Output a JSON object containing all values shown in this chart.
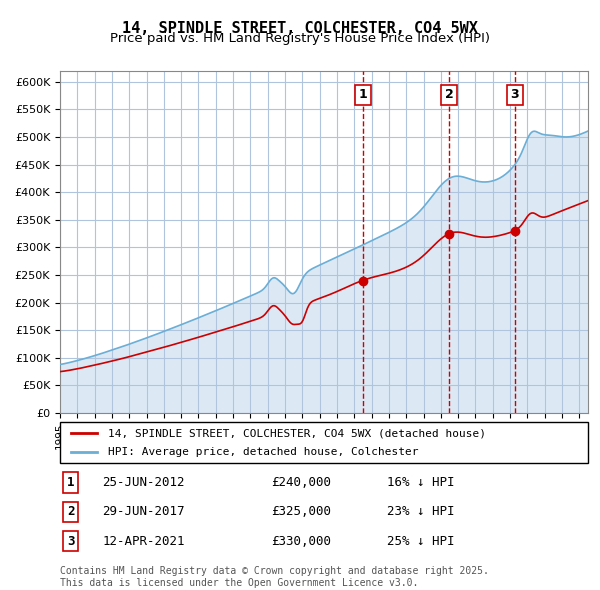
{
  "title": "14, SPINDLE STREET, COLCHESTER, CO4 5WX",
  "subtitle": "Price paid vs. HM Land Registry's House Price Index (HPI)",
  "xlabel": "",
  "ylabel": "",
  "ylim": [
    0,
    620000
  ],
  "yticks": [
    0,
    50000,
    100000,
    150000,
    200000,
    250000,
    300000,
    350000,
    400000,
    450000,
    500000,
    550000,
    600000
  ],
  "ytick_labels": [
    "£0",
    "£50K",
    "£100K",
    "£150K",
    "£200K",
    "£250K",
    "£300K",
    "£350K",
    "£400K",
    "£450K",
    "£500K",
    "£550K",
    "£600K"
  ],
  "hpi_color": "#6baed6",
  "price_color": "#cc0000",
  "bg_color": "#dce9f5",
  "plot_bg": "#ffffff",
  "grid_color": "#b0c4de",
  "vline_color": "#cc0000",
  "sale_points": [
    {
      "date_num": 2012.49,
      "price": 240000,
      "label": "1"
    },
    {
      "date_num": 2017.49,
      "price": 325000,
      "label": "2"
    },
    {
      "date_num": 2021.28,
      "price": 330000,
      "label": "3"
    }
  ],
  "sale_dates_str": [
    "25-JUN-2012",
    "29-JUN-2017",
    "12-APR-2021"
  ],
  "sale_prices_str": [
    "£240,000",
    "£325,000",
    "£330,000"
  ],
  "sale_pct_str": [
    "16% ↓ HPI",
    "23% ↓ HPI",
    "25% ↓ HPI"
  ],
  "legend_line1": "14, SPINDLE STREET, COLCHESTER, CO4 5WX (detached house)",
  "legend_line2": "HPI: Average price, detached house, Colchester",
  "footer": "Contains HM Land Registry data © Crown copyright and database right 2025.\nThis data is licensed under the Open Government Licence v3.0.",
  "title_fontsize": 11,
  "subtitle_fontsize": 9.5
}
